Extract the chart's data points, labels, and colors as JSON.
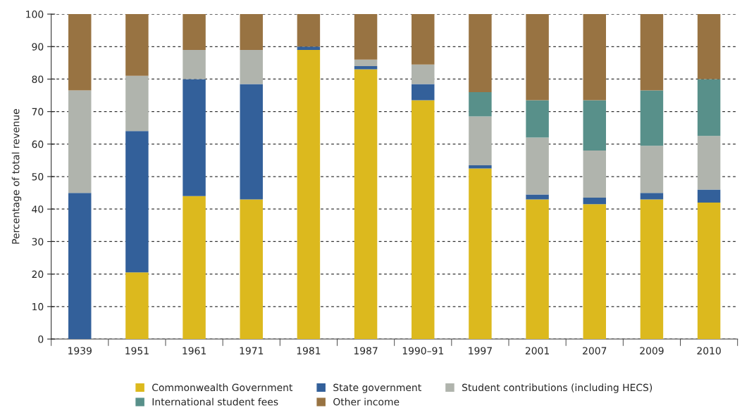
{
  "chart_data": {
    "type": "bar",
    "stacked": true,
    "ylabel": "Percentage of total revenue",
    "categories": [
      "1939",
      "1951",
      "1961",
      "1971",
      "1981",
      "1987",
      "1990–91",
      "1997",
      "2001",
      "2007",
      "2009",
      "2010"
    ],
    "series": [
      {
        "name": "Commonwealth Government",
        "color": "#dcb91e",
        "values": [
          null,
          20.5,
          44,
          43,
          89,
          83,
          73.5,
          52.5,
          43,
          41.5,
          43,
          42
        ]
      },
      {
        "name": "State government",
        "color": "#33609a",
        "values": [
          45,
          43.5,
          36,
          35.5,
          1,
          1,
          5,
          1,
          1.5,
          2,
          2,
          4
        ]
      },
      {
        "name": "Student contributions (including HECS)",
        "color": "#b0b4ad",
        "values": [
          31.5,
          17,
          9,
          10.5,
          null,
          2,
          6,
          15,
          17.5,
          14.5,
          14.5,
          16.5
        ]
      },
      {
        "name": "International student fees",
        "color": "#58908a",
        "values": [
          null,
          null,
          null,
          null,
          null,
          null,
          null,
          7.5,
          11.5,
          15.5,
          17,
          17.5
        ]
      },
      {
        "name": "Other income",
        "color": "#987342",
        "values": [
          23.5,
          19,
          11,
          11,
          10,
          14,
          15.5,
          24,
          26.5,
          26.5,
          23.5,
          20
        ]
      }
    ],
    "ylim": [
      0,
      100
    ],
    "yticks": [
      0,
      10,
      20,
      30,
      40,
      50,
      60,
      70,
      80,
      90,
      100
    ],
    "grid": "y",
    "legend": "bottom"
  }
}
